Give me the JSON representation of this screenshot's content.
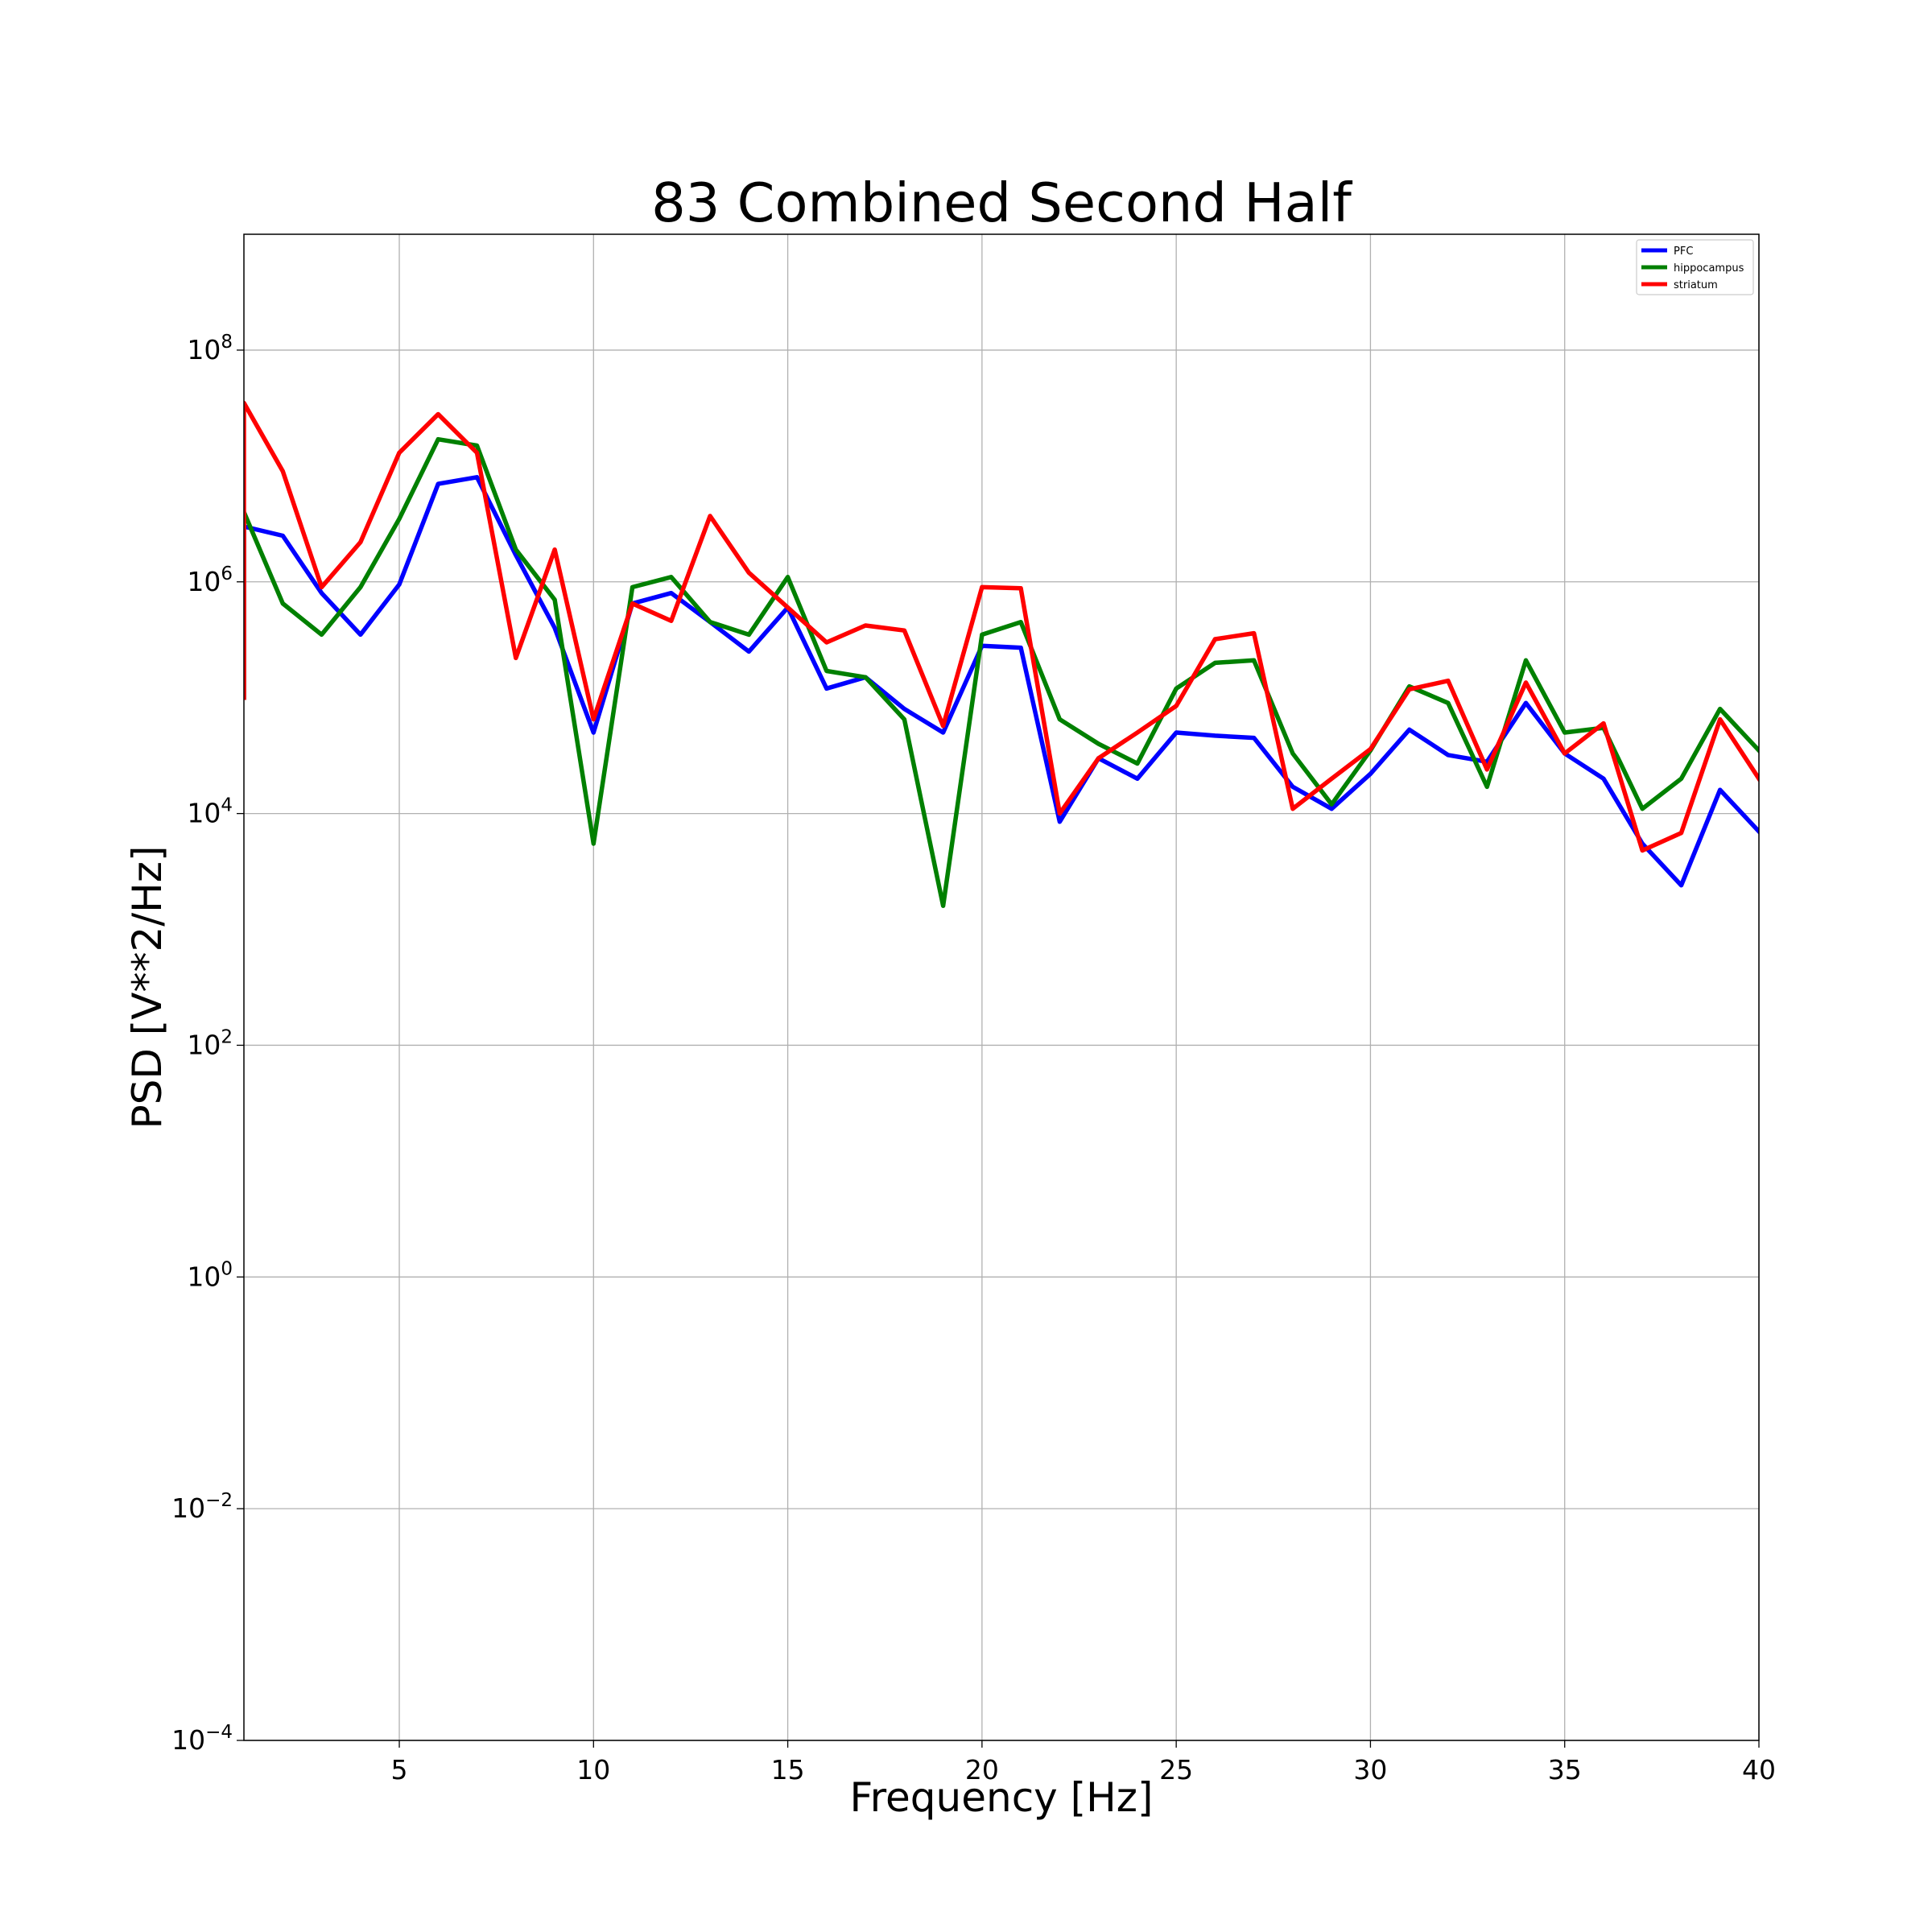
{
  "chart_data": {
    "type": "line",
    "title": "83 Combined Second Half",
    "xlabel": "Frequency [Hz]",
    "ylabel": "PSD [V**2/Hz]",
    "xlim": [
      1,
      40
    ],
    "ylim": [
      0.0001,
      1000000000
    ],
    "yscale": "log",
    "grid": true,
    "legend_position": "top-right",
    "x_ticks": [
      5,
      10,
      15,
      20,
      25,
      30,
      35,
      40
    ],
    "x_tick_labels": [
      "5",
      "10",
      "15",
      "20",
      "25",
      "30",
      "35",
      "40"
    ],
    "y_ticks": [
      0.0001,
      0.01,
      1,
      100,
      10000,
      1000000,
      100000000
    ],
    "y_tick_labels": [
      {
        "base": "10",
        "exp": "−4"
      },
      {
        "base": "10",
        "exp": "−2"
      },
      {
        "base": "10",
        "exp": "0"
      },
      {
        "base": "10",
        "exp": "2"
      },
      {
        "base": "10",
        "exp": "4"
      },
      {
        "base": "10",
        "exp": "6"
      },
      {
        "base": "10",
        "exp": "8"
      }
    ],
    "x": [
      1,
      2,
      3,
      4,
      5,
      6,
      7,
      8,
      9,
      10,
      11,
      12,
      13,
      14,
      15,
      16,
      17,
      18,
      19,
      20,
      21,
      22,
      23,
      24,
      25,
      26,
      27,
      28,
      29,
      30,
      31,
      32,
      33,
      34,
      35,
      36,
      37,
      38,
      39,
      40
    ],
    "series": [
      {
        "name": "PFC",
        "color": "#0000ff",
        "start_value": 100000,
        "values": [
          3000000,
          2500000,
          800000,
          350000,
          950000,
          7000000,
          8000000,
          1700000,
          400000,
          50000,
          650000,
          800000,
          450000,
          250000,
          600000,
          120000,
          150000,
          80000,
          50000,
          280000,
          270000,
          8500,
          30000,
          20000,
          50000,
          47000,
          45000,
          17000,
          11000,
          22000,
          53000,
          32000,
          28000,
          90000,
          33000,
          20000,
          5500,
          2400,
          16000,
          7000
        ]
      },
      {
        "name": "hippocampus",
        "color": "#008000",
        "start_value": 100000,
        "values": [
          4000000,
          650000,
          350000,
          900000,
          3500000,
          17000000,
          15000000,
          1900000,
          700000,
          5500,
          900000,
          1100000,
          450000,
          350000,
          1100000,
          170000,
          150000,
          65000,
          1600,
          350000,
          450000,
          65000,
          40000,
          27000,
          120000,
          200000,
          210000,
          33000,
          12000,
          35000,
          125000,
          90000,
          17000,
          210000,
          50000,
          55000,
          11000,
          20000,
          80000,
          35000
        ]
      },
      {
        "name": "striatum",
        "color": "#ff0000",
        "start_value": 100000,
        "values": [
          35000000,
          9000000,
          900000,
          2200000,
          13000000,
          28000000,
          13000000,
          220000,
          1900000,
          65000,
          650000,
          460000,
          3700000,
          1200000,
          600000,
          300000,
          420000,
          380000,
          57000,
          900000,
          880000,
          10000,
          30000,
          50000,
          85000,
          320000,
          360000,
          11000,
          20000,
          36000,
          118000,
          140000,
          24000,
          135000,
          33000,
          60000,
          4800,
          6800,
          65000,
          20000
        ]
      }
    ]
  }
}
